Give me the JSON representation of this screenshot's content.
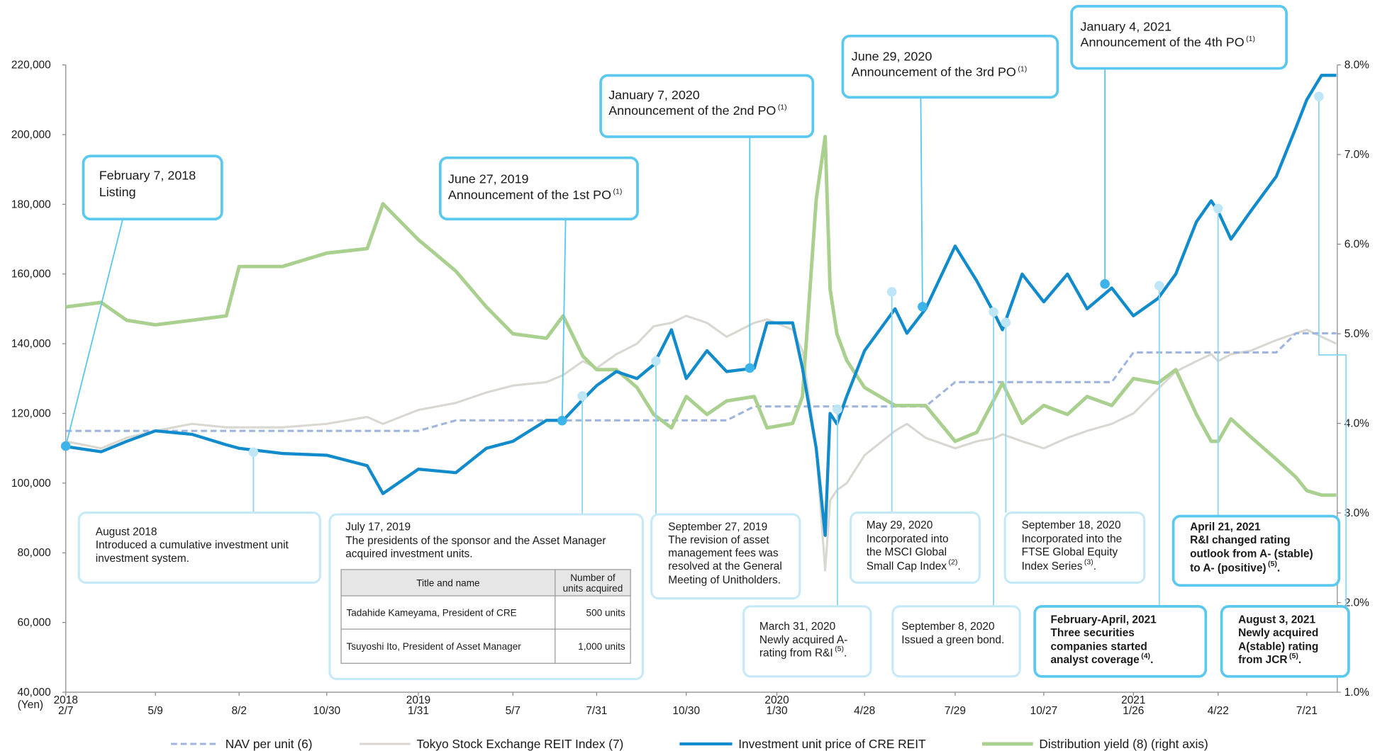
{
  "chart_data": {
    "type": "line",
    "x": [
      "2018-02-07",
      "2018-03-15",
      "2018-04-10",
      "2018-05-09",
      "2018-06-15",
      "2018-07-20",
      "2018-08-02",
      "2018-09-15",
      "2018-10-30",
      "2018-12-10",
      "2018-12-26",
      "2019-01-31",
      "2019-03-10",
      "2019-04-10",
      "2019-05-07",
      "2019-06-10",
      "2019-06-27",
      "2019-07-17",
      "2019-07-31",
      "2019-08-20",
      "2019-09-10",
      "2019-09-27",
      "2019-10-15",
      "2019-10-30",
      "2019-11-20",
      "2019-12-10",
      "2020-01-07",
      "2020-01-20",
      "2020-02-15",
      "2020-02-25",
      "2020-03-10",
      "2020-03-19",
      "2020-03-24",
      "2020-03-31",
      "2020-04-10",
      "2020-04-28",
      "2020-05-29",
      "2020-06-10",
      "2020-06-29",
      "2020-07-29",
      "2020-08-20",
      "2020-09-08",
      "2020-09-15",
      "2020-10-05",
      "2020-10-27",
      "2020-11-20",
      "2020-12-10",
      "2021-01-04",
      "2021-01-26",
      "2021-02-20",
      "2021-03-10",
      "2021-03-31",
      "2021-04-15",
      "2021-04-22",
      "2021-05-05",
      "2021-05-25",
      "2021-06-20",
      "2021-07-10",
      "2021-07-21",
      "2021-08-05",
      "2021-08-20"
    ],
    "series": [
      {
        "name": "Tokyo Stock Exchange REIT Index (7)",
        "color": "#d9d7d1",
        "width": 2.5,
        "values": [
          112000,
          110000,
          113000,
          115000,
          117000,
          116000,
          116000,
          116000,
          117000,
          119000,
          117000,
          121000,
          123000,
          126000,
          128000,
          129000,
          131000,
          135000,
          133000,
          137000,
          140000,
          145000,
          146000,
          148000,
          146000,
          142000,
          146000,
          147000,
          144000,
          138000,
          110000,
          75000,
          95000,
          98000,
          100000,
          108000,
          115000,
          117000,
          113000,
          110000,
          112000,
          113000,
          114000,
          112000,
          110000,
          113000,
          115000,
          117000,
          120000,
          127000,
          132000,
          135000,
          137000,
          135000,
          137000,
          138000,
          141000,
          143000,
          144000,
          142000,
          140000
        ]
      },
      {
        "name": "NAV per unit (6)",
        "color": "#9fb5de",
        "width": 2.5,
        "dashed": true,
        "values": [
          115000,
          115000,
          115000,
          115000,
          115000,
          115000,
          115000,
          115000,
          115000,
          115000,
          115000,
          115000,
          118000,
          118000,
          118000,
          118000,
          118000,
          118000,
          118000,
          118000,
          118000,
          118000,
          118000,
          118000,
          118000,
          118000,
          122000,
          122000,
          122000,
          122000,
          122000,
          122000,
          122000,
          122000,
          122000,
          122000,
          122000,
          122000,
          122000,
          129000,
          129000,
          129000,
          129000,
          129000,
          129000,
          129000,
          129000,
          129000,
          137500,
          137500,
          137500,
          137500,
          137500,
          137500,
          137500,
          137500,
          137500,
          143000,
          143000,
          143000,
          143000
        ]
      },
      {
        "name": "Distribution yield (8) (right axis)",
        "color": "#a9d08f",
        "width": 4,
        "axis": "y2",
        "values": [
          5.3,
          5.35,
          5.15,
          5.1,
          5.15,
          5.2,
          5.75,
          5.75,
          5.9,
          5.95,
          6.45,
          6.05,
          5.7,
          5.3,
          5.0,
          4.95,
          5.2,
          4.75,
          4.6,
          4.6,
          4.4,
          4.1,
          3.95,
          4.3,
          4.1,
          4.25,
          4.3,
          3.95,
          4.0,
          4.3,
          6.5,
          7.2,
          5.5,
          5.0,
          4.7,
          4.4,
          4.2,
          4.2,
          4.2,
          3.8,
          3.9,
          4.3,
          4.45,
          4.0,
          4.2,
          4.1,
          4.3,
          4.2,
          4.5,
          4.45,
          4.6,
          4.1,
          3.8,
          3.8,
          4.05,
          3.85,
          3.6,
          3.4,
          3.25,
          3.2,
          3.2
        ]
      },
      {
        "name": "Investment unit price of CRE REIT",
        "color": "#118bcb",
        "width": 3.5,
        "values": [
          110500,
          109000,
          112000,
          115000,
          114000,
          111000,
          110000,
          108500,
          108000,
          105000,
          97000,
          104000,
          103000,
          110000,
          112000,
          118000,
          118000,
          124000,
          128000,
          132000,
          130000,
          134000,
          144000,
          130000,
          138000,
          132000,
          133000,
          146000,
          146000,
          133000,
          110000,
          85000,
          120000,
          117000,
          125000,
          138000,
          150000,
          143000,
          150000,
          168000,
          158000,
          148000,
          144000,
          160000,
          152000,
          160000,
          150000,
          156000,
          148000,
          153000,
          160000,
          175000,
          181000,
          178000,
          170000,
          178000,
          188000,
          202000,
          210000,
          217000,
          217000
        ]
      }
    ],
    "legend_order": [
      1,
      0,
      3,
      2
    ],
    "xlim": [
      "2018-02-07",
      "2021-08-21"
    ],
    "xticks": [
      {
        "value": "2018-02-07",
        "label": "2/7"
      },
      {
        "value": "2018-05-09",
        "label": "5/9"
      },
      {
        "value": "2018-08-02",
        "label": "8/2"
      },
      {
        "value": "2018-10-30",
        "label": "10/30"
      },
      {
        "value": "2019-01-31",
        "label": "1/31"
      },
      {
        "value": "2019-05-07",
        "label": "5/7"
      },
      {
        "value": "2019-07-31",
        "label": "7/31"
      },
      {
        "value": "2019-10-30",
        "label": "10/30"
      },
      {
        "value": "2020-01-30",
        "label": "1/30"
      },
      {
        "value": "2020-04-28",
        "label": "4/28"
      },
      {
        "value": "2020-07-29",
        "label": "7/29"
      },
      {
        "value": "2020-10-27",
        "label": "10/27"
      },
      {
        "value": "2021-01-26",
        "label": "1/26"
      },
      {
        "value": "2021-04-22",
        "label": "4/22"
      },
      {
        "value": "2021-07-21",
        "label": "7/21"
      }
    ],
    "year_labels": [
      {
        "value": "2018-02-07",
        "label": "2018"
      },
      {
        "value": "2019-01-31",
        "label": "2019"
      },
      {
        "value": "2020-01-30",
        "label": "2020"
      },
      {
        "value": "2021-01-26",
        "label": "2021"
      }
    ],
    "y_unit": "(Yen)",
    "ylim": [
      40000,
      220000
    ],
    "yticks": [
      {
        "value": 40000,
        "label": "40,000"
      },
      {
        "value": 60000,
        "label": "60,000"
      },
      {
        "value": 80000,
        "label": "80,000"
      },
      {
        "value": 100000,
        "label": "100,000"
      },
      {
        "value": 120000,
        "label": "120,000"
      },
      {
        "value": 140000,
        "label": "140,000"
      },
      {
        "value": 160000,
        "label": "160,000"
      },
      {
        "value": 180000,
        "label": "180,000"
      },
      {
        "value": 200000,
        "label": "200,000"
      },
      {
        "value": 220000,
        "label": "220,000"
      }
    ],
    "y2lim": [
      1.0,
      8.0
    ],
    "y2ticks": [
      {
        "value": 1,
        "label": "1.0%"
      },
      {
        "value": 2,
        "label": "2.0%"
      },
      {
        "value": 3,
        "label": "3.0%"
      },
      {
        "value": 4,
        "label": "4.0%"
      },
      {
        "value": 5,
        "label": "5.0%"
      },
      {
        "value": 6,
        "label": "6.0%"
      },
      {
        "value": 7,
        "label": "7.0%"
      },
      {
        "value": 8,
        "label": "8.0%"
      }
    ],
    "annotations": [
      {
        "lines": [
          "February 7, 2018",
          "Listing"
        ],
        "style": "callout"
      },
      {
        "lines": [
          "August 2018",
          "Introduced a cumulative investment unit",
          "investment system."
        ]
      },
      {
        "lines": [
          "June 27, 2019",
          "Announcement of the 1st PO"
        ],
        "note": "(1)",
        "style": "callout"
      },
      {
        "lines": [
          "July 17, 2019",
          "The presidents of the sponsor and the Asset Manager",
          "acquired investment units."
        ],
        "table": {
          "header": [
            [
              "Title and name"
            ],
            [
              "Number of",
              "units acquired"
            ]
          ],
          "rows": [
            [
              "Tadahide Kameyama, President of CRE",
              "500 units"
            ],
            [
              "Tsuyoshi Ito, President of Asset Manager",
              "1,000 units"
            ]
          ]
        }
      },
      {
        "lines": [
          "September 27, 2019",
          "The revision of asset",
          "management fees was",
          "resolved at the General",
          "Meeting of Unitholders."
        ]
      },
      {
        "lines": [
          "January 7, 2020",
          "Announcement of the 2nd PO"
        ],
        "note": "(1)",
        "style": "callout"
      },
      {
        "lines": [
          "March 31, 2020",
          "Newly acquired A-",
          "rating from R&I"
        ],
        "note": "(5)",
        "after": "."
      },
      {
        "lines": [
          "May 29, 2020",
          "Incorporated into",
          "the MSCI Global",
          "Small Cap Index"
        ],
        "note": "(2)",
        "after": "."
      },
      {
        "lines": [
          "June 29, 2020",
          "Announcement of the 3rd PO"
        ],
        "note": "(1)",
        "style": "callout"
      },
      {
        "lines": [
          "September 8, 2020",
          "Issued a green bond."
        ]
      },
      {
        "lines": [
          "September 18, 2020",
          "Incorporated into the",
          "FTSE Global Equity",
          "Index Series"
        ],
        "note": "(3)",
        "after": "."
      },
      {
        "lines": [
          "January 4, 2021",
          "Announcement of the 4th PO"
        ],
        "note": "(1)",
        "style": "callout"
      },
      {
        "lines": [
          "February-April, 2021",
          "Three securities",
          "companies started",
          "analyst coverage"
        ],
        "note": "(4)",
        "after": ".",
        "bold": true
      },
      {
        "lines": [
          "April 21, 2021",
          "R&I changed rating",
          "outlook from A- (stable)",
          "to A- (positive)"
        ],
        "note": "(5)",
        "after": ".",
        "bold": true
      },
      {
        "lines": [
          "August 3, 2021",
          "Newly acquired",
          "A(stable) rating",
          "from JCR"
        ],
        "note": "(5)",
        "after": ".",
        "bold": true
      }
    ]
  }
}
